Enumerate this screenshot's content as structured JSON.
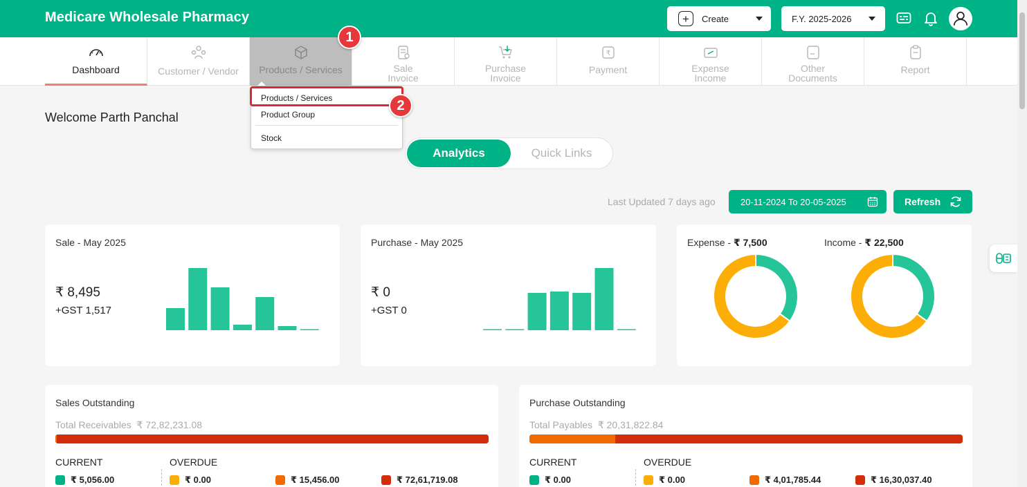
{
  "header": {
    "brand": "Medicare Wholesale Pharmacy",
    "create_label": "Create",
    "fy_label": "F.Y. 2025-2026",
    "colors": {
      "primary": "#00b386",
      "accent": "#f07e6e",
      "highlight": "#d9283a"
    }
  },
  "nav": {
    "dashboard": "Dashboard",
    "customer_vendor": "Customer / Vendor",
    "products_services": "Products / Services",
    "sale_1": "Sale",
    "sale_2": "Invoice",
    "purchase_1": "Purchase",
    "purchase_2": "Invoice",
    "payment": "Payment",
    "expense_1": "Expense",
    "expense_2": "Income",
    "other_1": "Other",
    "other_2": "Documents",
    "report": "Report"
  },
  "dropdown": {
    "items": [
      "Products / Services",
      "Product Group",
      "Stock"
    ]
  },
  "steps": {
    "one": "1",
    "two": "2"
  },
  "welcome": "Welcome Parth Panchal",
  "toggle": {
    "active": "Analytics",
    "inactive": "Quick Links"
  },
  "filters": {
    "last_updated": "Last Updated 7 days ago",
    "date_range": "20-11-2024 To 20-05-2025",
    "refresh": "Refresh"
  },
  "sale_card": {
    "title": "Sale - May 2025",
    "amount": "₹ 8,495",
    "gst": "+GST 1,517"
  },
  "purchase_card": {
    "title": "Purchase - May 2025",
    "amount": "₹ 0",
    "gst": "+GST 0"
  },
  "donuts": {
    "expense_label": "Expense - ",
    "expense_value": "₹ 7,500",
    "income_label": "Income - ",
    "income_value": "₹ 22,500"
  },
  "sales_outstanding": {
    "title": "Sales Outstanding",
    "sub_label": "Total Receivables",
    "sub_value": "₹ 72,82,231.08",
    "current": "CURRENT",
    "overdue": "OVERDUE",
    "values": [
      "₹ 5,056.00",
      "₹ 0.00",
      "₹ 15,456.00",
      "₹ 72,61,719.08"
    ]
  },
  "purchase_outstanding": {
    "title": "Purchase Outstanding",
    "sub_label": "Total Payables",
    "sub_value": "₹ 20,31,822.84",
    "current": "CURRENT",
    "overdue": "OVERDUE",
    "values": [
      "₹ 0.00",
      "₹ 0.00",
      "₹ 4,01,785.44",
      "₹ 16,30,037.40"
    ]
  },
  "chart_data": [
    {
      "type": "bar",
      "name": "sale-mini",
      "values": [
        16,
        45,
        31,
        4,
        24,
        3,
        0.5
      ],
      "ylim": [
        0,
        48
      ]
    },
    {
      "type": "bar",
      "name": "purchase-mini",
      "values": [
        0.3,
        0.3,
        27,
        28,
        27,
        45,
        0.3
      ],
      "ylim": [
        0,
        48
      ]
    },
    {
      "type": "pie",
      "name": "expense-donut",
      "values": [
        35,
        65
      ],
      "colors": [
        "#26c499",
        "#fdae06"
      ]
    },
    {
      "type": "pie",
      "name": "income-donut",
      "values": [
        35,
        65
      ],
      "colors": [
        "#26c499",
        "#fdae06"
      ]
    },
    {
      "type": "bar",
      "name": "sales-outstanding-bar",
      "values": [
        5056.0,
        0.0,
        15456.0,
        7261719.08
      ],
      "colors": [
        "#00b386",
        "#fdae06",
        "#ef6a00",
        "#d22e0a"
      ]
    },
    {
      "type": "bar",
      "name": "purchase-outstanding-bar",
      "values": [
        0.0,
        0.0,
        401785.44,
        1630037.4
      ],
      "colors": [
        "#00b386",
        "#fdae06",
        "#ef6a00",
        "#d22e0a"
      ]
    }
  ]
}
